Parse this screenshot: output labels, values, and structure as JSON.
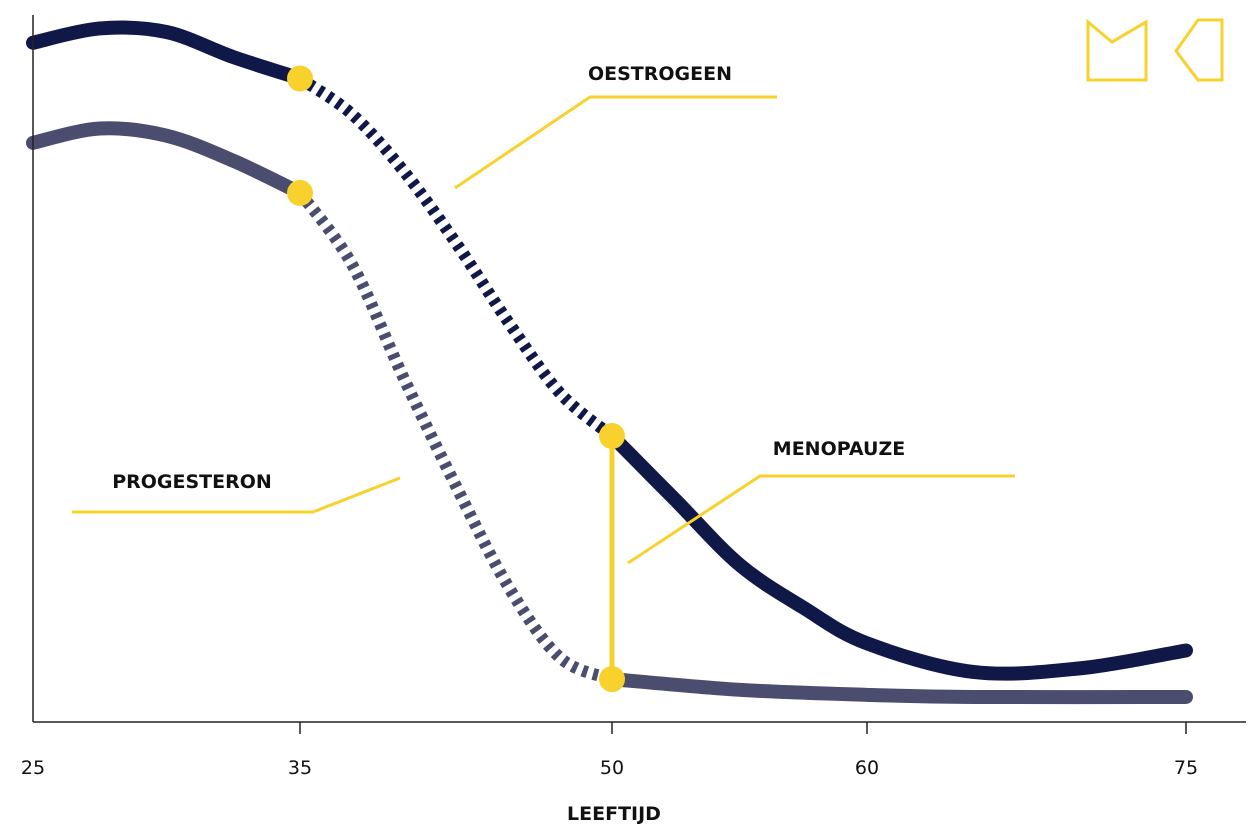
{
  "colors": {
    "oestrogeen": "#0f1846",
    "progesteron": "#4a4d6e",
    "accent": "#f8d12c",
    "axis": "#222222"
  },
  "logo": {
    "text": "MC",
    "color": "#f8d12c"
  },
  "chart_data": {
    "type": "line",
    "xlabel": "LEEFTIJD",
    "ylabel": "",
    "x_ticks": [
      "25",
      "35",
      "50",
      "60",
      "75"
    ],
    "grid": false,
    "series": [
      {
        "name": "OESTROGEEN",
        "color": "#0f1846",
        "points": [
          {
            "x": 25,
            "y": 95
          },
          {
            "x": 27.5,
            "y": 97
          },
          {
            "x": 30,
            "y": 96.5
          },
          {
            "x": 32.5,
            "y": 93
          },
          {
            "x": 35,
            "y": 90
          },
          {
            "x": 37.5,
            "y": 85
          },
          {
            "x": 40,
            "y": 77
          },
          {
            "x": 42.5,
            "y": 67
          },
          {
            "x": 45,
            "y": 56
          },
          {
            "x": 47.5,
            "y": 46
          },
          {
            "x": 50,
            "y": 40
          },
          {
            "x": 52.5,
            "y": 31
          },
          {
            "x": 55,
            "y": 22
          },
          {
            "x": 57.5,
            "y": 16
          },
          {
            "x": 60,
            "y": 11
          },
          {
            "x": 65,
            "y": 7
          },
          {
            "x": 70,
            "y": 7.5
          },
          {
            "x": 75,
            "y": 10
          }
        ],
        "dashed_range": [
          35,
          50
        ]
      },
      {
        "name": "PROGESTERON",
        "color": "#4a4d6e",
        "points": [
          {
            "x": 25,
            "y": 81
          },
          {
            "x": 27.5,
            "y": 83
          },
          {
            "x": 30,
            "y": 82
          },
          {
            "x": 32.5,
            "y": 78.5
          },
          {
            "x": 35,
            "y": 74
          },
          {
            "x": 37.5,
            "y": 64
          },
          {
            "x": 40,
            "y": 48
          },
          {
            "x": 42.5,
            "y": 33
          },
          {
            "x": 45,
            "y": 19
          },
          {
            "x": 47.5,
            "y": 9
          },
          {
            "x": 50,
            "y": 6
          },
          {
            "x": 55,
            "y": 4.5
          },
          {
            "x": 60,
            "y": 3.8
          },
          {
            "x": 65,
            "y": 3.5
          },
          {
            "x": 75,
            "y": 3.5
          }
        ],
        "dashed_range": [
          35,
          50
        ]
      }
    ],
    "markers": [
      {
        "series": "OESTROGEEN",
        "x": 35,
        "y": 90
      },
      {
        "series": "PROGESTERON",
        "x": 35,
        "y": 74
      },
      {
        "series": "OESTROGEEN",
        "x": 50,
        "y": 40
      },
      {
        "series": "PROGESTERON",
        "x": 50,
        "y": 6
      }
    ],
    "annotations": [
      {
        "text": "OESTROGEEN"
      },
      {
        "text": "PROGESTERON"
      },
      {
        "text": "MENOPAUZE"
      }
    ],
    "menopause_line": {
      "x": 50,
      "y_from": 6,
      "y_to": 40
    }
  }
}
